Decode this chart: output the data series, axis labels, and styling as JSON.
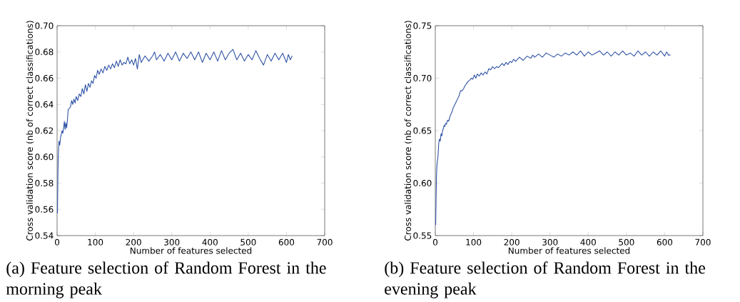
{
  "chart_data": [
    {
      "type": "line",
      "xlabel": "Number of features selected",
      "ylabel": "Cross validation score (nb of correct classifications)",
      "xlim": [
        0,
        700
      ],
      "xticks": [
        0,
        100,
        200,
        300,
        400,
        500,
        600,
        700
      ],
      "ylim": [
        0.54,
        0.7
      ],
      "yticks": [
        {
          "value": 0.54,
          "label": "0.54"
        },
        {
          "value": 0.56,
          "label": "0.56"
        },
        {
          "value": 0.58,
          "label": "0.58"
        },
        {
          "value": 0.6,
          "label": "0.60"
        },
        {
          "value": 0.62,
          "label": "0.62"
        },
        {
          "value": 0.64,
          "label": "0.64"
        },
        {
          "value": 0.66,
          "label": "0.66"
        },
        {
          "value": 0.68,
          "label": "0.68"
        },
        {
          "value": 0.7,
          "label": "0.70"
        }
      ],
      "annotations": [
        "(a) Feature selection of Random Forest in the morning peak"
      ],
      "series": [
        {
          "color": "#2a4fa3",
          "x": [
            1,
            2,
            3,
            4,
            5,
            7,
            9,
            11,
            13,
            15,
            17,
            19,
            21,
            23,
            25,
            27,
            29,
            32,
            35,
            38,
            41,
            44,
            47,
            50,
            54,
            58,
            62,
            66,
            70,
            74,
            78,
            82,
            86,
            90,
            94,
            98,
            102,
            106,
            110,
            115,
            120,
            125,
            130,
            135,
            140,
            145,
            150,
            155,
            160,
            165,
            170,
            175,
            180,
            185,
            190,
            195,
            200,
            205,
            210,
            215,
            220,
            230,
            240,
            250,
            255,
            260,
            270,
            280,
            290,
            300,
            310,
            320,
            330,
            340,
            350,
            360,
            370,
            380,
            390,
            400,
            410,
            420,
            430,
            440,
            450,
            460,
            470,
            480,
            490,
            500,
            510,
            520,
            530,
            540,
            550,
            560,
            570,
            580,
            590,
            600,
            605,
            610,
            615
          ],
          "values": [
            0.557,
            0.585,
            0.6,
            0.607,
            0.612,
            0.609,
            0.615,
            0.617,
            0.62,
            0.618,
            0.622,
            0.627,
            0.621,
            0.626,
            0.622,
            0.628,
            0.636,
            0.637,
            0.638,
            0.643,
            0.64,
            0.644,
            0.641,
            0.646,
            0.643,
            0.648,
            0.646,
            0.652,
            0.648,
            0.655,
            0.65,
            0.656,
            0.653,
            0.658,
            0.656,
            0.662,
            0.66,
            0.666,
            0.663,
            0.667,
            0.664,
            0.669,
            0.666,
            0.67,
            0.667,
            0.671,
            0.668,
            0.673,
            0.669,
            0.674,
            0.67,
            0.672,
            0.671,
            0.676,
            0.671,
            0.674,
            0.67,
            0.675,
            0.667,
            0.678,
            0.672,
            0.677,
            0.673,
            0.677,
            0.68,
            0.674,
            0.678,
            0.673,
            0.679,
            0.674,
            0.68,
            0.673,
            0.679,
            0.675,
            0.68,
            0.674,
            0.68,
            0.672,
            0.679,
            0.674,
            0.68,
            0.673,
            0.681,
            0.674,
            0.679,
            0.682,
            0.674,
            0.679,
            0.673,
            0.678,
            0.674,
            0.681,
            0.675,
            0.67,
            0.678,
            0.673,
            0.679,
            0.674,
            0.679,
            0.672,
            0.678,
            0.674,
            0.677
          ]
        }
      ]
    },
    {
      "type": "line",
      "xlabel": "Number of features selected",
      "ylabel": "Cross validation score (nb of correct classifications)",
      "xlim": [
        0,
        700
      ],
      "xticks": [
        0,
        100,
        200,
        300,
        400,
        500,
        600,
        700
      ],
      "ylim": [
        0.55,
        0.75
      ],
      "yticks": [
        {
          "value": 0.55,
          "label": "0.55"
        },
        {
          "value": 0.6,
          "label": "0.60"
        },
        {
          "value": 0.65,
          "label": "0.65"
        },
        {
          "value": 0.7,
          "label": "0.70"
        },
        {
          "value": 0.75,
          "label": "0.75"
        }
      ],
      "annotations": [
        "(b) Feature selection of Random Forest in the evening peak"
      ],
      "series": [
        {
          "color": "#2a4fa3",
          "x": [
            1,
            2,
            3,
            4,
            5,
            7,
            9,
            11,
            13,
            15,
            17,
            19,
            21,
            23,
            25,
            27,
            29,
            32,
            35,
            38,
            41,
            44,
            47,
            50,
            54,
            58,
            62,
            66,
            70,
            74,
            78,
            82,
            86,
            90,
            94,
            98,
            102,
            106,
            110,
            115,
            120,
            125,
            130,
            135,
            140,
            145,
            150,
            155,
            160,
            165,
            170,
            175,
            180,
            185,
            190,
            195,
            200,
            205,
            210,
            215,
            220,
            230,
            240,
            250,
            255,
            260,
            270,
            280,
            290,
            300,
            310,
            320,
            330,
            340,
            350,
            360,
            370,
            380,
            390,
            400,
            410,
            420,
            430,
            440,
            450,
            460,
            470,
            480,
            490,
            500,
            510,
            520,
            530,
            540,
            550,
            560,
            570,
            580,
            590,
            600,
            605,
            610,
            615
          ],
          "values": [
            0.56,
            0.585,
            0.605,
            0.615,
            0.62,
            0.625,
            0.638,
            0.642,
            0.64,
            0.647,
            0.645,
            0.65,
            0.652,
            0.655,
            0.654,
            0.657,
            0.656,
            0.66,
            0.659,
            0.663,
            0.666,
            0.668,
            0.672,
            0.674,
            0.677,
            0.68,
            0.683,
            0.688,
            0.688,
            0.69,
            0.693,
            0.695,
            0.697,
            0.698,
            0.7,
            0.699,
            0.703,
            0.7,
            0.704,
            0.702,
            0.705,
            0.703,
            0.706,
            0.704,
            0.709,
            0.708,
            0.711,
            0.709,
            0.711,
            0.71,
            0.712,
            0.714,
            0.712,
            0.715,
            0.713,
            0.716,
            0.715,
            0.718,
            0.716,
            0.718,
            0.72,
            0.717,
            0.721,
            0.719,
            0.722,
            0.72,
            0.723,
            0.72,
            0.724,
            0.722,
            0.72,
            0.723,
            0.721,
            0.724,
            0.722,
            0.725,
            0.722,
            0.726,
            0.721,
            0.725,
            0.722,
            0.724,
            0.726,
            0.722,
            0.725,
            0.721,
            0.725,
            0.722,
            0.726,
            0.722,
            0.724,
            0.721,
            0.726,
            0.722,
            0.725,
            0.721,
            0.725,
            0.722,
            0.726,
            0.721,
            0.725,
            0.722,
            0.722
          ]
        }
      ]
    }
  ]
}
